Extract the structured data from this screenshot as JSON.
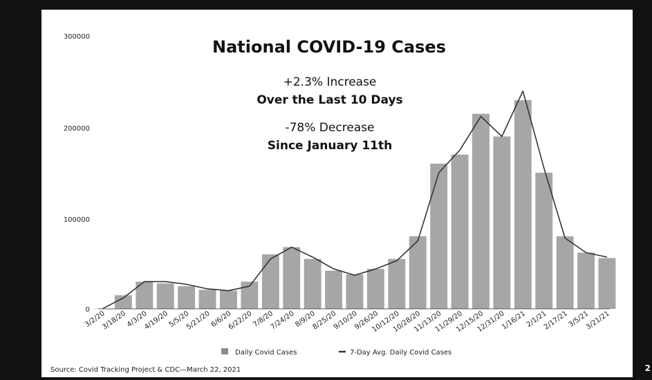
{
  "slide": {
    "source": "Source: Covid Tracking Project & CDC—March 22, 2021",
    "page_number": "2"
  },
  "chart_data": {
    "type": "bar",
    "title": "National COVID-19 Cases",
    "annotations": [
      "+2.3% Increase",
      "Over the Last 10 Days",
      "-78% Decrease",
      "Since January 11th"
    ],
    "xlabel": "",
    "ylabel": "",
    "ylim": [
      0,
      300000
    ],
    "yticks": [
      "0",
      "100000",
      "200000",
      "300000"
    ],
    "grid": false,
    "legend_position": "bottom",
    "tick_labels": [
      "3/2/20",
      "3/18/20",
      "4/3/20",
      "4/19/20",
      "5/5/20",
      "5/21/20",
      "6/6/20",
      "6/22/20",
      "7/8/20",
      "7/24/20",
      "8/9/20",
      "8/25/20",
      "9/10/20",
      "9/26/20",
      "10/12/20",
      "10/28/20",
      "11/13/20",
      "11/29/20",
      "12/15/20",
      "12/31/20",
      "1/16/21",
      "2/1/21",
      "2/17/21",
      "3/5/21",
      "3/21/21"
    ],
    "categories": [
      "3/2/20",
      "3/18/20",
      "4/3/20",
      "4/19/20",
      "5/5/20",
      "5/21/20",
      "6/6/20",
      "6/22/20",
      "7/8/20",
      "7/24/20",
      "8/9/20",
      "8/25/20",
      "9/10/20",
      "9/26/20",
      "10/12/20",
      "10/28/20",
      "11/13/20",
      "11/29/20",
      "12/15/20",
      "12/31/20",
      "1/16/21",
      "2/1/21",
      "2/17/21",
      "3/5/21",
      "3/21/21"
    ],
    "series": [
      {
        "name": "Daily Covid Cases",
        "type": "bar",
        "color": "#a6a6a6",
        "values": [
          50,
          15000,
          30000,
          28000,
          25000,
          21000,
          20000,
          30000,
          60000,
          68000,
          55000,
          42000,
          38000,
          44000,
          55000,
          80000,
          160000,
          170000,
          215000,
          190000,
          230000,
          150000,
          80000,
          62000,
          56000
        ]
      },
      {
        "name": "7-Day Avg. Daily Covid Cases",
        "type": "line",
        "color": "#333333",
        "values": [
          50,
          12000,
          30000,
          30000,
          27000,
          22000,
          20000,
          25000,
          55000,
          68000,
          57000,
          44000,
          37000,
          44000,
          53000,
          75000,
          150000,
          175000,
          212000,
          190000,
          240000,
          155000,
          78000,
          62000,
          57000
        ]
      }
    ]
  }
}
